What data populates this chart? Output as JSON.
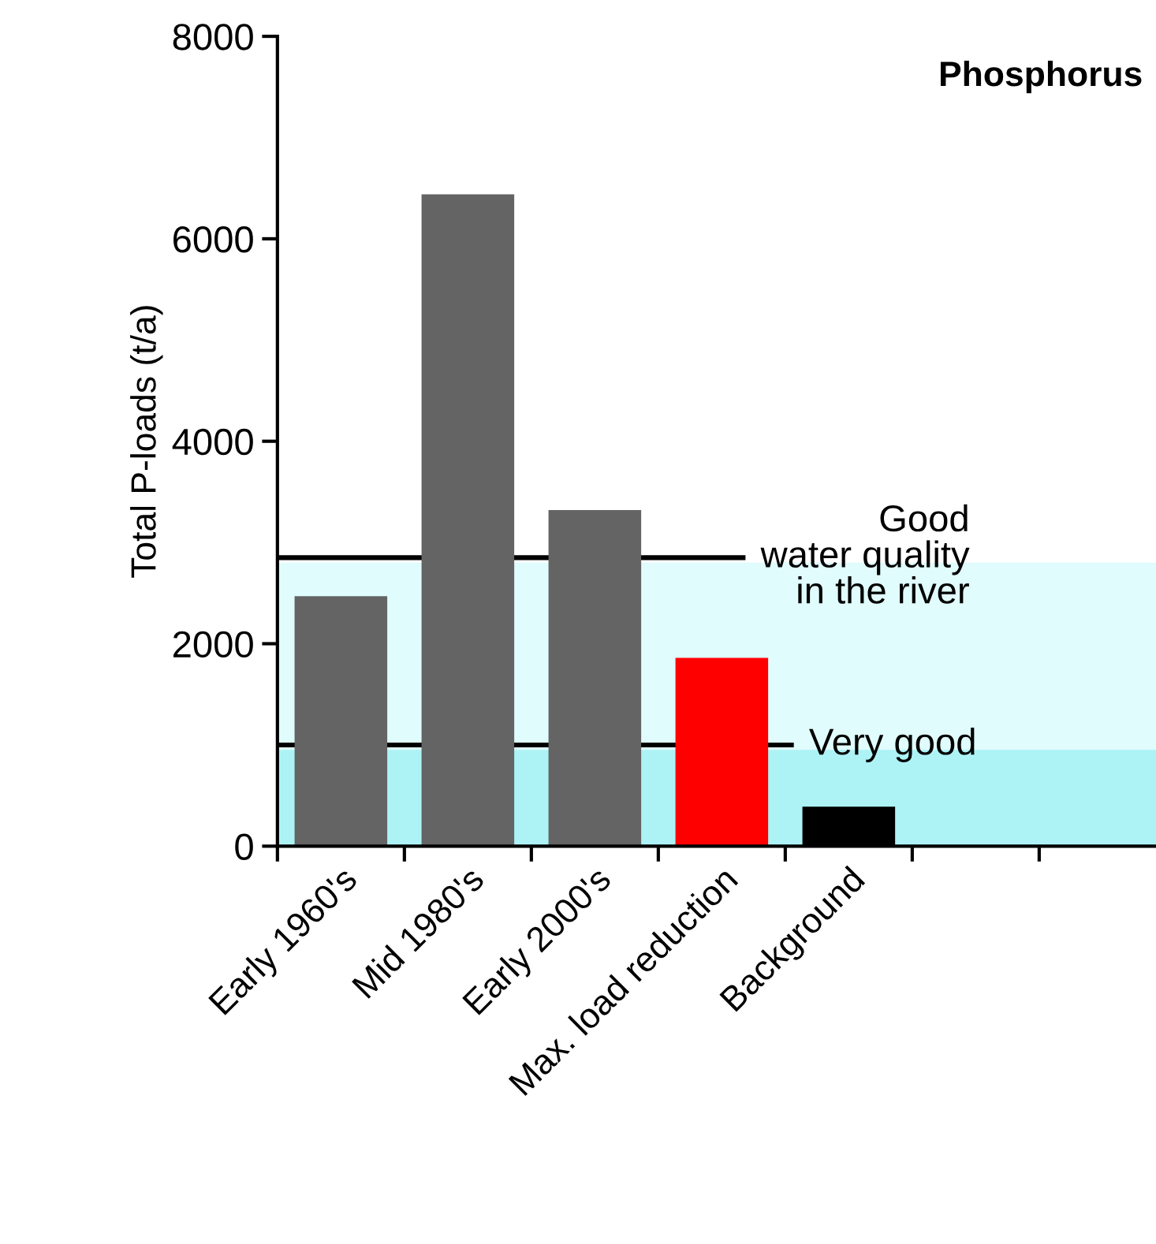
{
  "chart_data": {
    "type": "bar",
    "title": "Phosphorus",
    "ylabel": "Total P-loads (t/a)",
    "categories": [
      "Early 1960's",
      "Mid 1980's",
      "Early 2000's",
      "Max. load reduction",
      "Background",
      null,
      null
    ],
    "values": [
      2470,
      6440,
      3320,
      1860,
      390,
      null,
      null
    ],
    "colors": [
      "#646464",
      "#646464",
      "#646464",
      "#ff0000",
      "#000000",
      "#646464",
      "#646464"
    ],
    "ylim": [
      0,
      8000
    ],
    "yticks": [
      0,
      2000,
      4000,
      6000,
      8000
    ],
    "grid": false,
    "bands": [
      {
        "axis": "y",
        "from": 0,
        "to": 2800,
        "color": "#e0fcfd"
      },
      {
        "axis": "y",
        "from": 0,
        "to": 950,
        "color": "#adf3f6"
      }
    ],
    "ref_lines": [
      {
        "axis": "y",
        "value": 2850,
        "label": "Good\nwater quality\nin the river",
        "color": "#000000",
        "line_style": "solid"
      },
      {
        "axis": "y",
        "value": 1000,
        "label": "Very good",
        "color": "#000000",
        "line_style": "solid"
      }
    ]
  }
}
